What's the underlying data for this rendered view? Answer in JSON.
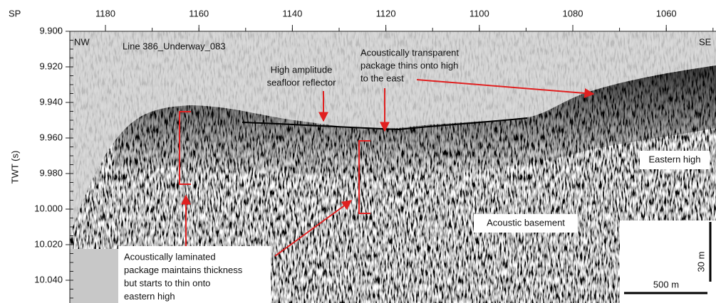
{
  "header": {
    "sp_label": "SP",
    "twt_label": "TWT (s)",
    "line_name": "Line 386_Underway_083",
    "west": "NW",
    "east": "SE"
  },
  "sp_ticks": [
    "1180",
    "1160",
    "1140",
    "1120",
    "1100",
    "1080",
    "1060"
  ],
  "twt_ticks": [
    "9.900",
    "9.920",
    "9.940",
    "9.960",
    "9.980",
    "10.000",
    "10.020",
    "10.040"
  ],
  "annotations": {
    "seafloor": [
      "High amplitude",
      "seafloor reflector"
    ],
    "transparent": [
      "Acoustically transparent",
      "package thins onto high",
      "to the east"
    ],
    "eastern_high": "Eastern high",
    "basement": "Acoustic basement",
    "laminated": [
      "Acoustically laminated",
      "package maintains thickness",
      "but starts to thin onto",
      "eastern high"
    ]
  },
  "scale_bar": {
    "horizontal": "500 m",
    "vertical": "30 m"
  }
}
